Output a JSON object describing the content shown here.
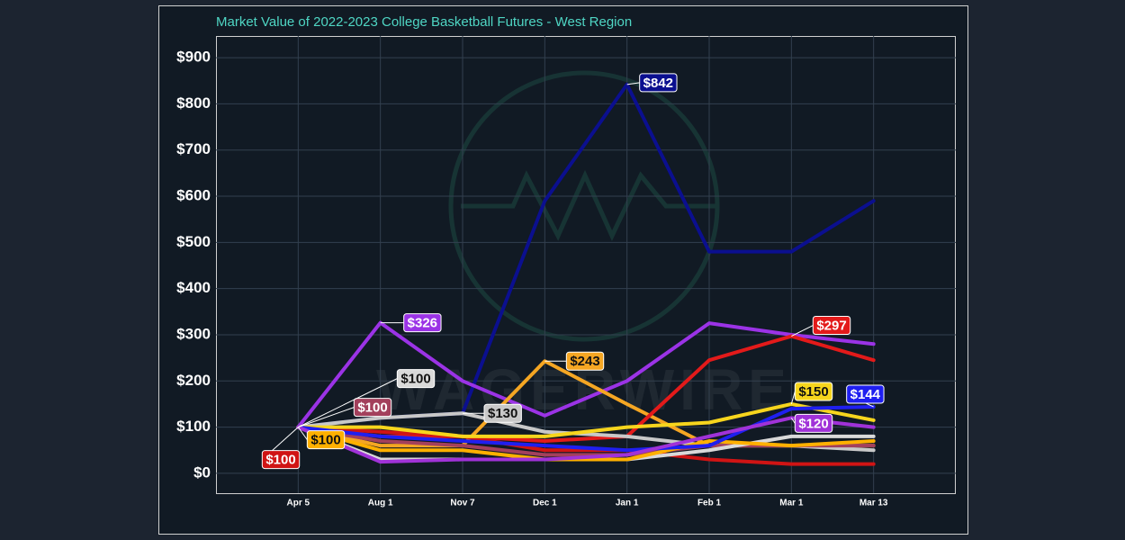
{
  "chart_data": {
    "type": "line",
    "title": "Market Value of 2022-2023 College Basketball Futures - West Region",
    "watermark": "WAGERWIRE",
    "categories": [
      "Apr 5",
      "Aug 1",
      "Nov 7",
      "Dec 1",
      "Jan 1",
      "Feb 1",
      "Mar 1",
      "Mar 13"
    ],
    "ylim": [
      -43,
      947
    ],
    "yticks": [
      {
        "value": 0,
        "label": "$0"
      },
      {
        "value": 100,
        "label": "$100"
      },
      {
        "value": 200,
        "label": "$200"
      },
      {
        "value": 300,
        "label": "$300"
      },
      {
        "value": 400,
        "label": "$400"
      },
      {
        "value": 500,
        "label": "$500"
      },
      {
        "value": 600,
        "label": "$600"
      },
      {
        "value": 700,
        "label": "$700"
      },
      {
        "value": 800,
        "label": "$800"
      },
      {
        "value": 900,
        "label": "$900"
      }
    ],
    "grid": true,
    "series": [
      {
        "color": "#0b0f8f",
        "values": [
          100,
          120,
          130,
          590,
          842,
          480,
          480,
          590
        ],
        "value_labels": [
          null,
          null,
          null,
          null,
          "$842",
          null,
          null,
          null
        ]
      },
      {
        "color": "#9b33e6",
        "values": [
          100,
          326,
          200,
          125,
          200,
          325,
          300,
          280
        ],
        "value_labels": [
          null,
          "$326",
          null,
          null,
          null,
          null,
          null,
          null
        ]
      },
      {
        "color": "#f5a623",
        "values": [
          100,
          60,
          60,
          243,
          150,
          60,
          60,
          60
        ],
        "value_labels": [
          null,
          null,
          null,
          "$243",
          null,
          null,
          null,
          null
        ]
      },
      {
        "color": "#e31a1a",
        "values": [
          100,
          80,
          80,
          70,
          80,
          245,
          297,
          245
        ],
        "value_labels": [
          null,
          null,
          null,
          null,
          null,
          null,
          "$297",
          null
        ]
      },
      {
        "color": "#d01414",
        "values": [
          100,
          90,
          80,
          50,
          50,
          30,
          20,
          20
        ],
        "value_labels": [
          "$100",
          null,
          null,
          null,
          null,
          null,
          null,
          null
        ]
      },
      {
        "color": "#c8c8c8",
        "values": [
          100,
          120,
          130,
          90,
          80,
          60,
          60,
          50
        ],
        "value_labels": [
          null,
          null,
          "$130",
          null,
          null,
          null,
          null,
          null
        ]
      },
      {
        "color": "#a3405c",
        "values": [
          100,
          70,
          60,
          40,
          40,
          60,
          60,
          60
        ],
        "value_labels": [
          "$100",
          null,
          null,
          null,
          null,
          null,
          null,
          null
        ]
      },
      {
        "color": "#d9d9d9",
        "values": [
          100,
          30,
          30,
          30,
          30,
          50,
          80,
          80
        ],
        "value_labels": [
          "$100",
          null,
          null,
          null,
          null,
          null,
          null,
          null
        ]
      },
      {
        "color": "#ffb000",
        "values": [
          100,
          50,
          50,
          30,
          30,
          70,
          60,
          70
        ],
        "value_labels": [
          "$100",
          null,
          null,
          null,
          null,
          null,
          null,
          null
        ]
      },
      {
        "color": "#f7d51d",
        "values": [
          100,
          100,
          80,
          80,
          100,
          110,
          150,
          115
        ],
        "value_labels": [
          null,
          null,
          null,
          null,
          null,
          null,
          "$150",
          null
        ]
      },
      {
        "color": "#1f1ff0",
        "values": [
          100,
          80,
          70,
          60,
          50,
          60,
          140,
          144
        ],
        "value_labels": [
          null,
          null,
          null,
          null,
          null,
          null,
          null,
          "$144"
        ]
      },
      {
        "color": "#a032d8",
        "values": [
          100,
          25,
          30,
          30,
          40,
          80,
          120,
          100
        ],
        "value_labels": [
          null,
          null,
          null,
          null,
          null,
          null,
          "$120",
          null
        ]
      }
    ]
  }
}
